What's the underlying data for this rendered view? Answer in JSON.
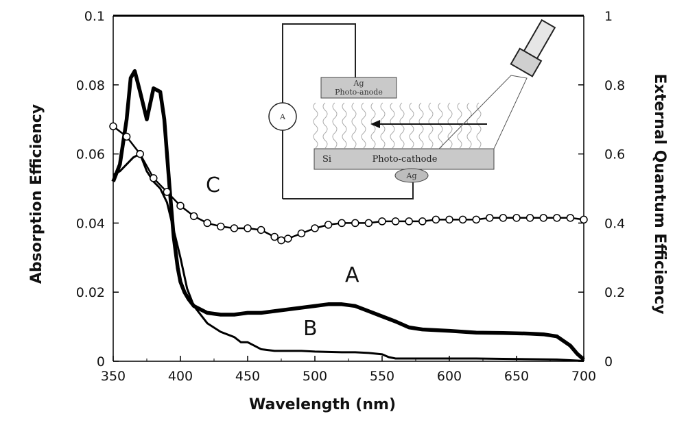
{
  "chart_data": {
    "type": "line",
    "xlabel": "Wavelength  (nm)",
    "ylabel_left": "Absorption  Efficiency",
    "ylabel_right": "External  Quantum  Efficiency",
    "xlim": [
      350,
      700
    ],
    "ylim_left": [
      0,
      0.1
    ],
    "ylim_right": [
      0,
      1
    ],
    "x_ticks": [
      "350",
      "400",
      "450",
      "500",
      "550",
      "600",
      "650",
      "700"
    ],
    "y_left_ticks": [
      "0",
      "0.02",
      "0.04",
      "0.06",
      "0.08",
      "0.1"
    ],
    "y_right_ticks": [
      "0",
      "0.2",
      "0.4",
      "0.6",
      "0.8",
      "1"
    ],
    "grid": false,
    "legend": "none",
    "series": [
      {
        "name": "A",
        "axis": "left",
        "style": "thick-line",
        "x": [
          350,
          355,
          360,
          363,
          366,
          370,
          375,
          380,
          385,
          388,
          392,
          395,
          398,
          400,
          403,
          406,
          410,
          420,
          430,
          440,
          450,
          460,
          470,
          480,
          490,
          500,
          510,
          520,
          530,
          540,
          550,
          560,
          570,
          580,
          590,
          600,
          620,
          640,
          660,
          670,
          680,
          690,
          695,
          700
        ],
        "y": [
          0.052,
          0.057,
          0.07,
          0.082,
          0.084,
          0.078,
          0.07,
          0.079,
          0.078,
          0.07,
          0.05,
          0.036,
          0.027,
          0.023,
          0.02,
          0.018,
          0.016,
          0.014,
          0.0135,
          0.0135,
          0.014,
          0.014,
          0.0145,
          0.015,
          0.0155,
          0.016,
          0.0165,
          0.0165,
          0.016,
          0.0145,
          0.013,
          0.0115,
          0.0098,
          0.0092,
          0.009,
          0.0088,
          0.0083,
          0.0082,
          0.008,
          0.0078,
          0.0072,
          0.0045,
          0.0022,
          0.0005
        ]
      },
      {
        "name": "B",
        "axis": "left",
        "style": "line",
        "x": [
          350,
          355,
          360,
          365,
          370,
          375,
          380,
          385,
          390,
          395,
          400,
          405,
          410,
          420,
          430,
          440,
          445,
          450,
          455,
          460,
          470,
          480,
          490,
          500,
          510,
          520,
          530,
          540,
          550,
          555,
          560,
          580,
          600,
          620,
          640,
          660,
          680,
          690,
          700
        ],
        "y": [
          0.054,
          0.055,
          0.057,
          0.059,
          0.06,
          0.055,
          0.052,
          0.05,
          0.046,
          0.038,
          0.03,
          0.021,
          0.016,
          0.011,
          0.0085,
          0.007,
          0.0055,
          0.0055,
          0.0045,
          0.0035,
          0.003,
          0.003,
          0.003,
          0.0028,
          0.0027,
          0.0026,
          0.0026,
          0.0024,
          0.002,
          0.0012,
          0.0008,
          0.0008,
          0.0008,
          0.0008,
          0.0007,
          0.0006,
          0.0005,
          0.0003,
          0.0001
        ]
      },
      {
        "name": "C",
        "axis": "right",
        "style": "line-with-open-circles",
        "x": [
          350,
          360,
          370,
          380,
          390,
          400,
          410,
          420,
          430,
          440,
          450,
          460,
          470,
          475,
          480,
          490,
          500,
          510,
          520,
          530,
          540,
          550,
          560,
          570,
          580,
          590,
          600,
          610,
          620,
          630,
          640,
          650,
          660,
          670,
          680,
          690,
          700
        ],
        "y": [
          0.68,
          0.65,
          0.6,
          0.53,
          0.49,
          0.45,
          0.42,
          0.4,
          0.39,
          0.385,
          0.385,
          0.38,
          0.36,
          0.35,
          0.355,
          0.37,
          0.385,
          0.395,
          0.4,
          0.4,
          0.4,
          0.405,
          0.405,
          0.405,
          0.405,
          0.41,
          0.41,
          0.41,
          0.41,
          0.415,
          0.415,
          0.415,
          0.415,
          0.415,
          0.415,
          0.415,
          0.41
        ]
      }
    ],
    "annotations": [
      "A",
      "B",
      "C"
    ]
  },
  "inset": {
    "anode_label_1": "Ag",
    "anode_label_2": "Photo-anode",
    "ammeter_label": "A",
    "si_label": "Si",
    "cathode_label": "Photo-cathode",
    "bottom_contact_label": "Ag"
  }
}
